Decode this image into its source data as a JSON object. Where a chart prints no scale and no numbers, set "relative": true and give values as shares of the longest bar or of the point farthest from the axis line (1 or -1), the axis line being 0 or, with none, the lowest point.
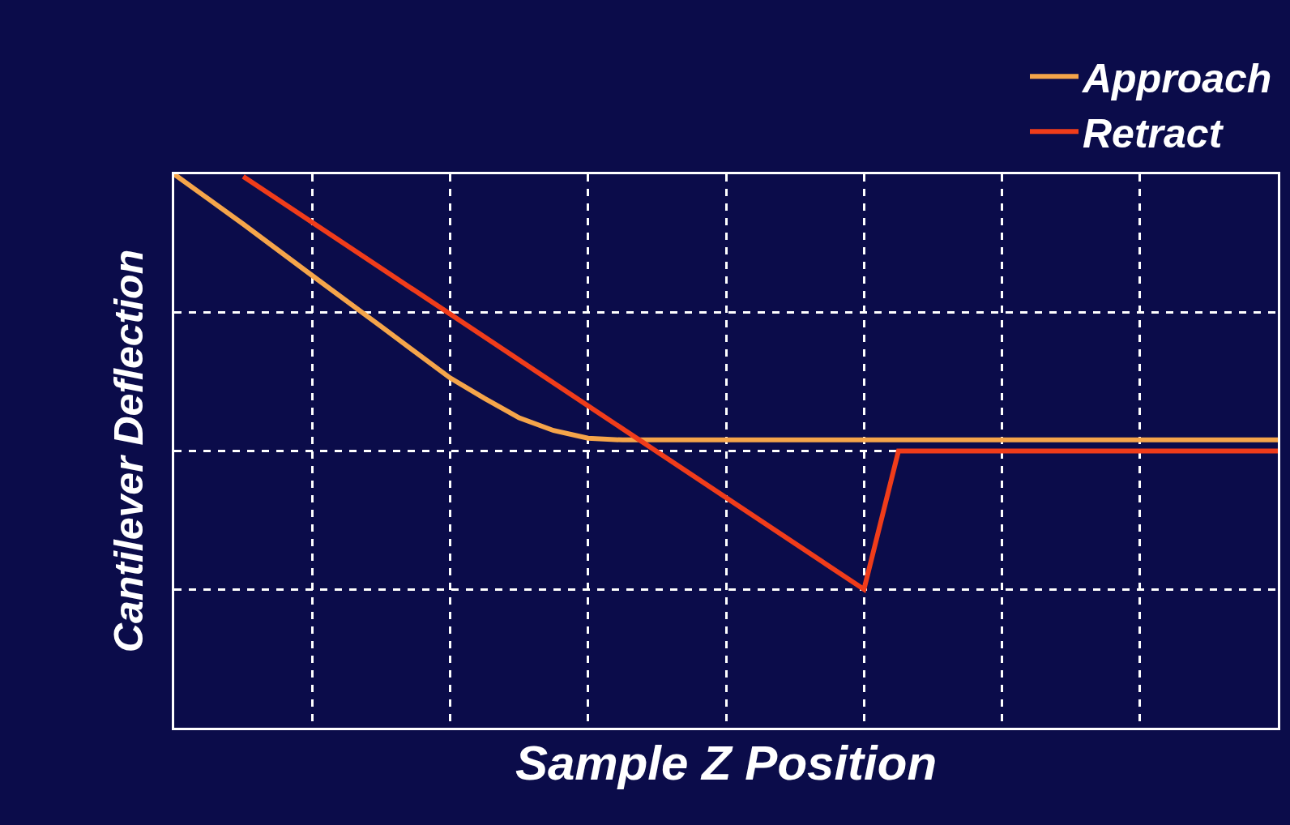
{
  "chart_data": {
    "type": "line",
    "relative": true,
    "xlabel": "Sample Z Position",
    "ylabel": "Cantilever Deflection",
    "categories": [
      null,
      null,
      null,
      null,
      null,
      null,
      null,
      null,
      null,
      null,
      null,
      null,
      null,
      null,
      null,
      null,
      null,
      null,
      null,
      null,
      null,
      null,
      null,
      null,
      null,
      null,
      null,
      null,
      null,
      null,
      null,
      null,
      null
    ],
    "series": [
      {
        "name": "Approach",
        "color": "#f5a54a",
        "values": [
          1.0,
          null,
          0.91,
          null,
          0.817,
          null,
          0.725,
          null,
          0.632,
          0.595,
          0.56,
          0.537,
          0.523,
          0.52,
          null,
          null,
          null,
          null,
          null,
          null,
          null,
          null,
          null,
          null,
          null,
          null,
          null,
          null,
          null,
          null,
          null,
          null,
          0.52
        ]
      },
      {
        "name": "Retract",
        "color": "#f03c1a",
        "values": [
          null,
          null,
          0.996,
          null,
          null,
          null,
          null,
          null,
          null,
          null,
          null,
          null,
          null,
          null,
          null,
          null,
          null,
          null,
          null,
          null,
          0.25,
          0.5,
          null,
          null,
          null,
          null,
          null,
          null,
          null,
          null,
          null,
          null,
          0.5
        ]
      }
    ],
    "grid": true,
    "legend": "top right",
    "line_style": "solid",
    "marker": "none"
  }
}
